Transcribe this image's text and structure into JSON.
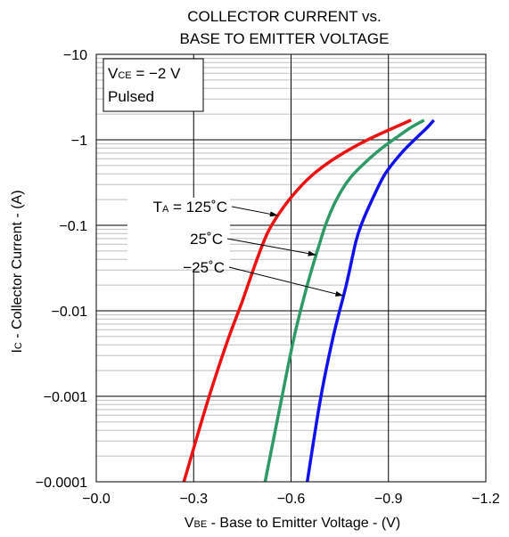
{
  "chart_data": {
    "type": "line",
    "title_lines": [
      "COLLECTOR CURRENT vs.",
      "BASE TO EMITTER VOLTAGE"
    ],
    "xlabel": {
      "main": "V",
      "sub": "BE",
      "rest": " - Base to Emitter Voltage - (V)"
    },
    "ylabel": {
      "main": "I",
      "sub": "C",
      "rest": " - Collector Current - (A)"
    },
    "x_ticks": [
      "−0.0",
      "−0.3",
      "−0.6",
      "−0.9",
      "−1.2"
    ],
    "y_ticks": [
      "−0.0001",
      "−0.001",
      "−0.01",
      "−0.1",
      "−1",
      "−10"
    ],
    "xlim": [
      0,
      -1.2
    ],
    "ylim": [
      -0.0001,
      -10
    ],
    "y_scale": "log",
    "grid": true,
    "condition_box": {
      "line1_main": "V",
      "line1_sub": "CE",
      "line1_rest": " = −2 V",
      "line2": "Pulsed"
    },
    "annotations": [
      {
        "main": "T",
        "sub": "A",
        "rest": " = 125˚C",
        "series": 0
      },
      {
        "main": "25˚C",
        "sub": "",
        "rest": "",
        "series": 1
      },
      {
        "main": "−25˚C",
        "sub": "",
        "rest": "",
        "series": 2
      }
    ],
    "series": [
      {
        "color": "#ee1111",
        "x": [
          -0.27,
          -0.34,
          -0.4,
          -0.45,
          -0.5,
          -0.53,
          -0.57,
          -0.62,
          -0.67,
          -0.73,
          -0.8,
          -0.88,
          -0.97
        ],
        "y": [
          -0.0001,
          -0.0008,
          -0.004,
          -0.013,
          -0.045,
          -0.085,
          -0.15,
          -0.26,
          -0.4,
          -0.59,
          -0.85,
          -1.2,
          -1.7
        ]
      },
      {
        "color": "#2e9a66",
        "x": [
          -0.52,
          -0.57,
          -0.61,
          -0.65,
          -0.69,
          -0.71,
          -0.74,
          -0.78,
          -0.83,
          -0.88,
          -0.93,
          -0.97,
          -1.01
        ],
        "y": [
          -0.0001,
          -0.0009,
          -0.005,
          -0.02,
          -0.065,
          -0.11,
          -0.2,
          -0.35,
          -0.55,
          -0.8,
          -1.1,
          -1.4,
          -1.7
        ]
      },
      {
        "color": "#1111ee",
        "x": [
          -0.65,
          -0.69,
          -0.73,
          -0.77,
          -0.8,
          -0.82,
          -0.85,
          -0.89,
          -0.94,
          -0.98,
          -1.02,
          -1.04
        ],
        "y": [
          -0.0001,
          -0.0009,
          -0.005,
          -0.02,
          -0.065,
          -0.11,
          -0.2,
          -0.4,
          -0.7,
          -1.0,
          -1.4,
          -1.7
        ]
      }
    ]
  }
}
